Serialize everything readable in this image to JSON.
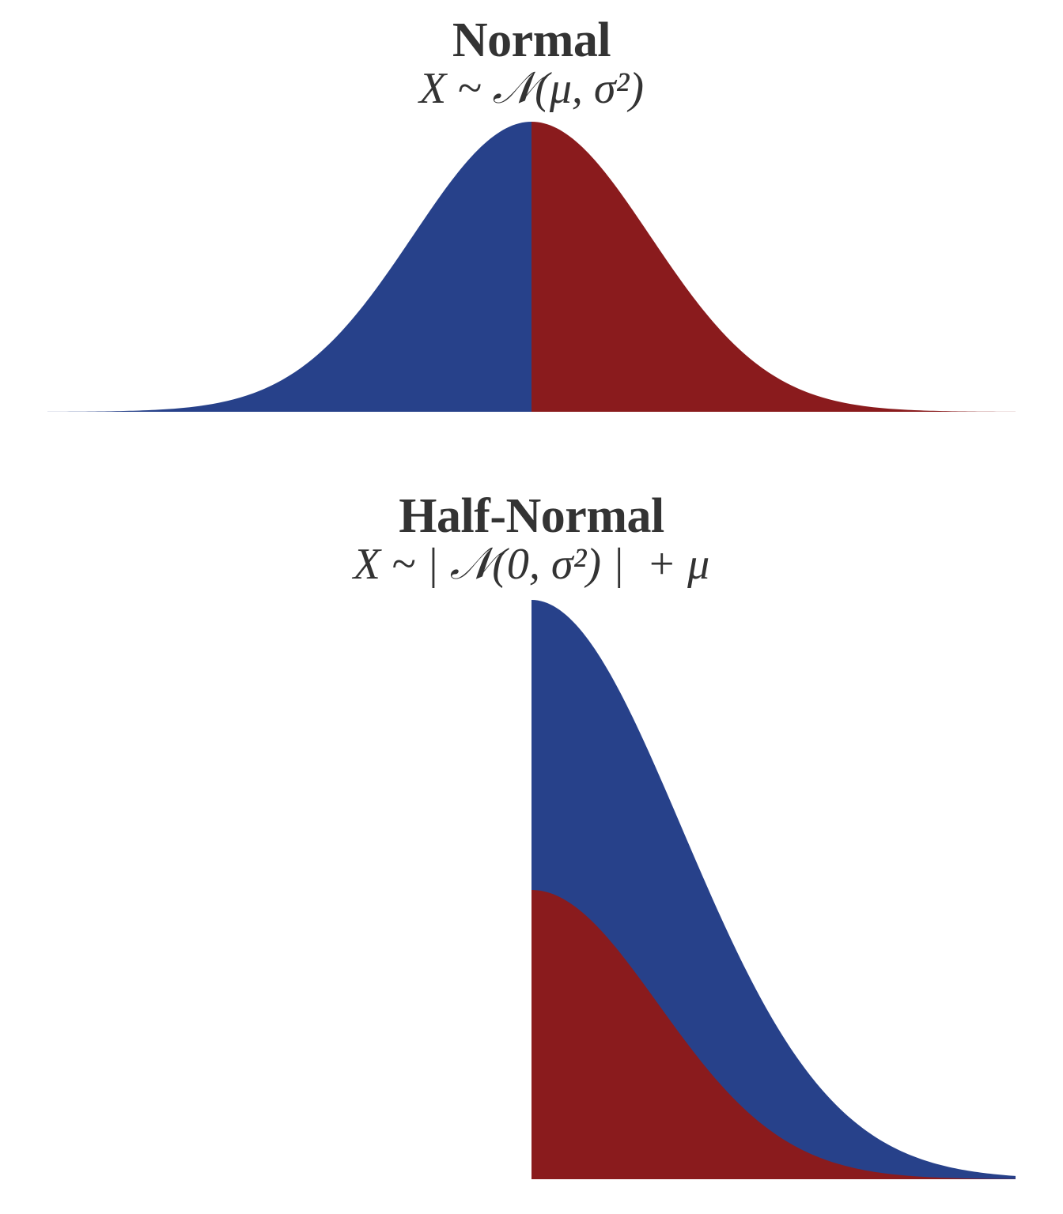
{
  "normal": {
    "title": "Normal",
    "formula": "X ~ 𝒩(μ, σ²)"
  },
  "half_normal": {
    "title": "Half-Normal",
    "formula": "X ~ | 𝒩(0, σ²) |  + μ"
  },
  "colors": {
    "blue": "#27418a",
    "red": "#8a1b1d",
    "text": "#333333"
  }
}
